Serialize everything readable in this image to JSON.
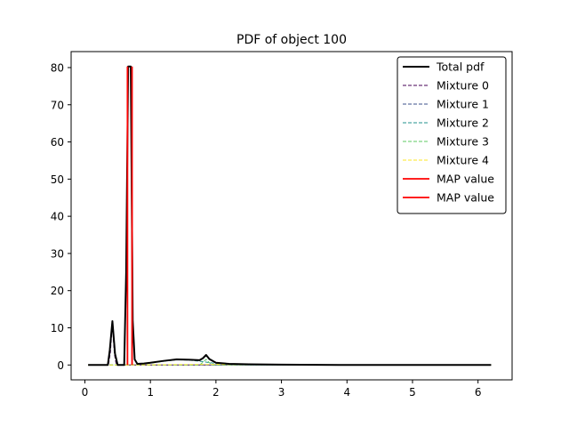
{
  "chart_data": {
    "type": "line",
    "title": "PDF of object 100",
    "xlabel": "",
    "ylabel": "",
    "xlim": [
      -0.21,
      6.52
    ],
    "ylim": [
      -4.0,
      84.3
    ],
    "xticks": [
      0,
      1,
      2,
      3,
      4,
      5,
      6
    ],
    "yticks": [
      0,
      10,
      20,
      30,
      40,
      50,
      60,
      70,
      80
    ],
    "grid": false,
    "legend_position": "top-right",
    "series": [
      {
        "name": "Total pdf",
        "color": "#000000",
        "style": "solid",
        "x": [
          0.05,
          0.35,
          0.38,
          0.42,
          0.46,
          0.5,
          0.6,
          0.63,
          0.66,
          0.7,
          0.73,
          0.76,
          0.8,
          0.9,
          1.0,
          1.2,
          1.4,
          1.6,
          1.75,
          1.8,
          1.85,
          1.9,
          2.0,
          2.2,
          2.5,
          3.0,
          4.0,
          5.0,
          6.2
        ],
        "y": [
          0,
          0,
          4,
          11.8,
          3,
          0,
          0,
          25,
          80.3,
          80.3,
          12,
          1.5,
          0.3,
          0.4,
          0.6,
          1.1,
          1.5,
          1.4,
          1.3,
          1.8,
          2.7,
          1.6,
          0.6,
          0.3,
          0.2,
          0.1,
          0,
          0,
          0
        ]
      },
      {
        "name": "Mixture 0",
        "color": "#440154",
        "style": "dashed",
        "x": [
          0.05,
          0.36,
          0.39,
          0.42,
          0.45,
          0.48,
          6.2
        ],
        "y": [
          0,
          0,
          3.5,
          11.5,
          3,
          0,
          0
        ]
      },
      {
        "name": "Mixture 1",
        "color": "#3b528b",
        "style": "dashed",
        "x": [
          0.05,
          0.6,
          0.63,
          0.66,
          0.7,
          0.73,
          0.76,
          0.8,
          6.2
        ],
        "y": [
          0,
          0,
          25,
          80.3,
          80.3,
          12,
          1.5,
          0,
          0
        ]
      },
      {
        "name": "Mixture 2",
        "color": "#21918c",
        "style": "dashed",
        "x": [
          0.05,
          0.8,
          1.0,
          1.2,
          1.4,
          1.6,
          1.8,
          2.0,
          2.2,
          2.5,
          6.2
        ],
        "y": [
          0,
          0.1,
          0.5,
          1.0,
          1.4,
          1.3,
          0.9,
          0.4,
          0.15,
          0.05,
          0
        ]
      },
      {
        "name": "Mixture 3",
        "color": "#5ec962",
        "style": "dashed",
        "x": [
          0.05,
          1.75,
          1.8,
          1.85,
          1.9,
          1.95,
          6.2
        ],
        "y": [
          0,
          0,
          0.7,
          1.5,
          0.6,
          0,
          0
        ]
      },
      {
        "name": "Mixture 4",
        "color": "#fde725",
        "style": "dashed",
        "x": [
          0.05,
          1.0,
          2.0,
          3.0,
          4.0,
          5.0,
          6.2
        ],
        "y": [
          0,
          0.05,
          0.15,
          0.1,
          0.05,
          0.02,
          0
        ]
      }
    ],
    "map_values": [
      {
        "name": "MAP value",
        "color": "#ff0000",
        "x": 0.65,
        "ymin": 0,
        "ymax": 80.3
      },
      {
        "name": "MAP value",
        "color": "#ff0000",
        "x": 0.72,
        "ymin": 0,
        "ymax": 80.3
      }
    ]
  }
}
